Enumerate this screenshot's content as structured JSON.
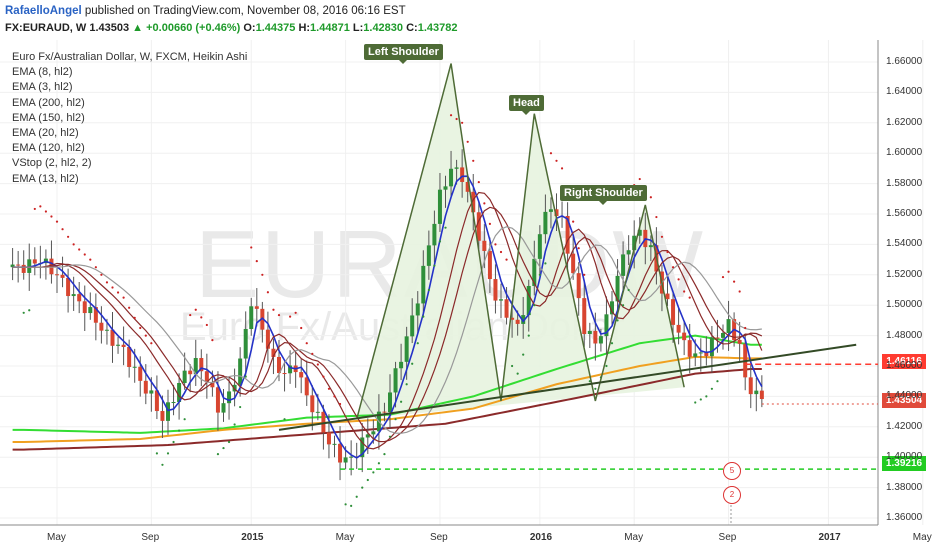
{
  "header": {
    "author": "RafaelloAngel",
    "published": "published on TradingView.com, November 08, 2016 06:16 EST",
    "symbol": "FX:EURAUD, W",
    "last": "1.43503",
    "change_arrow": "▲",
    "change": "+0.00660 (+0.46%)",
    "o_label": "O:",
    "o_value": "1.44375",
    "h_label": "H:",
    "h_value": "1.44871",
    "l_label": "L:",
    "l_value": "1.42830",
    "c_label": "C:",
    "c_value": "1.43782"
  },
  "legend": {
    "title": "Euro Fx/Australian Dollar, W, FXCM, Heikin Ashi",
    "indicators": [
      "EMA (8, hl2)",
      "EMA (3, hl2)",
      "EMA (200, hl2)",
      "EMA (150, hl2)",
      "EMA (20, hl2)",
      "EMA (120, hl2)",
      "VStop (2, hl2, 2)",
      "EMA (13, hl2)"
    ]
  },
  "watermark": {
    "symbol": "EURAUDW",
    "name": "Euro Fx/Australian Dollar"
  },
  "annotations": {
    "left_shoulder": "Left Shoulder",
    "head": "Head",
    "right_shoulder": "Right Shoulder"
  },
  "price_tags": {
    "resistance": "1.46116",
    "support": "1.39216",
    "current": "1.43504"
  },
  "event_markers": [
    "5",
    "2"
  ],
  "colors": {
    "bull": "#2f8f3a",
    "bear": "#d84530",
    "pattern_fill": "#e7f3df",
    "pattern_line": "#4e6b36",
    "resistance": "#ff3b30",
    "support": "#22cc22",
    "current": "#e04a3a",
    "ema_blue": "#2432c8",
    "ema_maroon": "#8b2a2a",
    "ema_gray": "#999999",
    "ema_green": "#33dd33",
    "ema_orange": "#f0a020",
    "vstop": "#cc2222"
  },
  "chart_data": {
    "type": "candlestick",
    "title": "Euro Fx/Australian Dollar, W, FXCM, Heikin Ashi",
    "ylim": [
      1.35,
      1.67
    ],
    "y_ticks": [
      "1.66000",
      "1.64000",
      "1.62000",
      "1.60000",
      "1.58000",
      "1.56000",
      "1.54000",
      "1.52000",
      "1.50000",
      "1.48000",
      "1.46000",
      "1.44000",
      "1.42000",
      "1.40000",
      "1.38000",
      "1.36000"
    ],
    "x_ticks": [
      {
        "label": "May",
        "week": 0,
        "bold": false
      },
      {
        "label": "Sep",
        "week": 17,
        "bold": false
      },
      {
        "label": "2015",
        "week": 35,
        "bold": true
      },
      {
        "label": "May",
        "week": 52,
        "bold": false
      },
      {
        "label": "Sep",
        "week": 69,
        "bold": false
      },
      {
        "label": "2016",
        "week": 87,
        "bold": true
      },
      {
        "label": "May",
        "week": 104,
        "bold": false
      },
      {
        "label": "Sep",
        "week": 121,
        "bold": false
      },
      {
        "label": "2017",
        "week": 139,
        "bold": true
      },
      {
        "label": "May",
        "week": 156,
        "bold": false
      }
    ],
    "close_path": [
      [
        -6,
        1.525
      ],
      [
        -3,
        1.53
      ],
      [
        0,
        1.52
      ],
      [
        3,
        1.505
      ],
      [
        6,
        1.495
      ],
      [
        9,
        1.48
      ],
      [
        12,
        1.47
      ],
      [
        15,
        1.45
      ],
      [
        17,
        1.44
      ],
      [
        19,
        1.425
      ],
      [
        21,
        1.44
      ],
      [
        23,
        1.455
      ],
      [
        25,
        1.462
      ],
      [
        27,
        1.452
      ],
      [
        29,
        1.432
      ],
      [
        31,
        1.44
      ],
      [
        33,
        1.463
      ],
      [
        35,
        1.503
      ],
      [
        37,
        1.485
      ],
      [
        39,
        1.462
      ],
      [
        41,
        1.455
      ],
      [
        43,
        1.46
      ],
      [
        45,
        1.44
      ],
      [
        47,
        1.426
      ],
      [
        49,
        1.41
      ],
      [
        51,
        1.4
      ],
      [
        53,
        1.398
      ],
      [
        55,
        1.41
      ],
      [
        57,
        1.42
      ],
      [
        59,
        1.432
      ],
      [
        61,
        1.455
      ],
      [
        63,
        1.478
      ],
      [
        65,
        1.505
      ],
      [
        67,
        1.54
      ],
      [
        69,
        1.572
      ],
      [
        71,
        1.59
      ],
      [
        73,
        1.585
      ],
      [
        75,
        1.56
      ],
      [
        77,
        1.532
      ],
      [
        79,
        1.505
      ],
      [
        81,
        1.495
      ],
      [
        83,
        1.485
      ],
      [
        85,
        1.51
      ],
      [
        87,
        1.55
      ],
      [
        89,
        1.565
      ],
      [
        91,
        1.555
      ],
      [
        93,
        1.52
      ],
      [
        95,
        1.485
      ],
      [
        97,
        1.475
      ],
      [
        99,
        1.49
      ],
      [
        101,
        1.52
      ],
      [
        103,
        1.54
      ],
      [
        105,
        1.548
      ],
      [
        107,
        1.536
      ],
      [
        109,
        1.51
      ],
      [
        111,
        1.49
      ],
      [
        113,
        1.474
      ],
      [
        115,
        1.466
      ],
      [
        117,
        1.47
      ],
      [
        119,
        1.48
      ],
      [
        121,
        1.487
      ],
      [
        123,
        1.474
      ],
      [
        124,
        1.45
      ],
      [
        126,
        1.441
      ],
      [
        127,
        1.438
      ]
    ],
    "emas": [
      {
        "name": "EMA (3, hl2)",
        "color": "#2432c8",
        "lag": 1,
        "smooth": 0.55
      },
      {
        "name": "EMA (8, hl2)",
        "color": "#8b2a2a",
        "lag": 3,
        "smooth": 0.3
      },
      {
        "name": "EMA (13, hl2)",
        "color": "#8b2a2a",
        "lag": 4,
        "smooth": 0.22
      },
      {
        "name": "EMA (20, hl2)",
        "color": "#999999",
        "lag": 6,
        "smooth": 0.16
      }
    ],
    "long_emas": [
      {
        "name": "EMA (120, hl2)",
        "color": "#33dd33",
        "points": [
          [
            -6,
            1.418
          ],
          [
            15,
            1.416
          ],
          [
            30,
            1.419
          ],
          [
            45,
            1.426
          ],
          [
            60,
            1.428
          ],
          [
            75,
            1.44
          ],
          [
            90,
            1.458
          ],
          [
            105,
            1.475
          ],
          [
            115,
            1.48
          ],
          [
            125,
            1.474
          ]
        ]
      },
      {
        "name": "EMA (150, hl2)",
        "color": "#f0a020",
        "points": [
          [
            -6,
            1.41
          ],
          [
            15,
            1.412
          ],
          [
            30,
            1.418
          ],
          [
            45,
            1.422
          ],
          [
            60,
            1.425
          ],
          [
            75,
            1.432
          ],
          [
            90,
            1.448
          ],
          [
            105,
            1.46
          ],
          [
            115,
            1.466
          ],
          [
            125,
            1.465
          ]
        ]
      },
      {
        "name": "EMA (200, hl2)",
        "color": "#8b2a2a",
        "points": [
          [
            -6,
            1.405
          ],
          [
            20,
            1.408
          ],
          [
            45,
            1.415
          ],
          [
            70,
            1.422
          ],
          [
            95,
            1.44
          ],
          [
            115,
            1.455
          ],
          [
            125,
            1.458
          ]
        ]
      }
    ],
    "pattern": {
      "left_shoulder": [
        [
          54,
          1.425
        ],
        [
          71,
          1.659
        ],
        [
          80,
          1.437
        ],
        [
          86,
          1.626
        ],
        [
          97,
          1.437
        ],
        [
          106,
          1.566
        ],
        [
          113,
          1.446
        ]
      ],
      "neckline": [
        [
          40,
          1.418
        ],
        [
          144,
          1.474
        ]
      ]
    },
    "levels": [
      {
        "name": "resistance",
        "value": 1.46116
      },
      {
        "name": "support",
        "value": 1.39216
      },
      {
        "name": "current",
        "value": 1.43504
      }
    ]
  }
}
